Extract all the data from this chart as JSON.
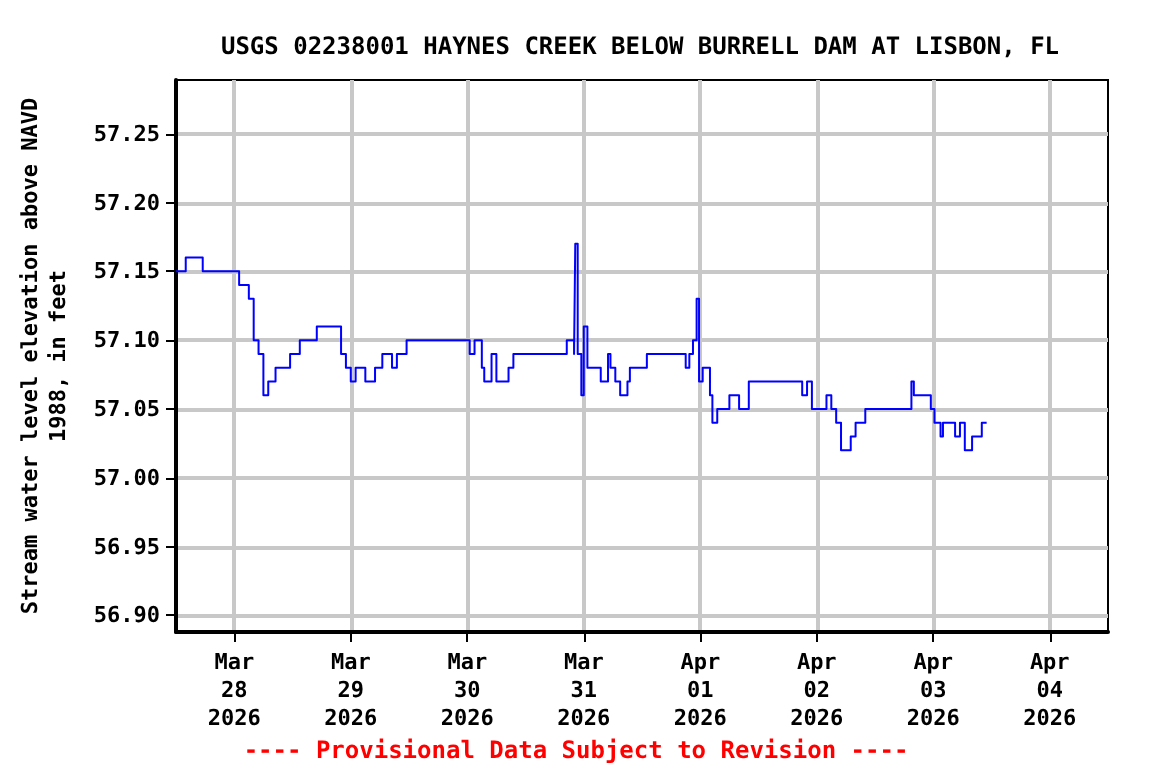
{
  "chart_data": {
    "type": "step",
    "title": "USGS 02238001 HAYNES CREEK BELOW BURRELL DAM AT LISBON, FL",
    "ylabel": "Stream water level elevation above NAVD 1988, in feet",
    "annotations": [
      "---- Provisional Data Subject to Revision ----"
    ],
    "x": [
      "2026-03-27T12:00",
      "2026-03-27T14:00",
      "2026-03-27T17:30",
      "2026-03-28T01:00",
      "2026-03-28T03:00",
      "2026-03-28T04:00",
      "2026-03-28T05:00",
      "2026-03-28T06:00",
      "2026-03-28T07:00",
      "2026-03-28T08:30",
      "2026-03-28T11:30",
      "2026-03-28T13:30",
      "2026-03-28T17:00",
      "2026-03-28T22:00",
      "2026-03-28T23:00",
      "2026-03-29T00:00",
      "2026-03-29T01:00",
      "2026-03-29T03:00",
      "2026-03-29T05:00",
      "2026-03-29T06:30",
      "2026-03-29T08:30",
      "2026-03-29T09:30",
      "2026-03-29T11:30",
      "2026-03-30T00:30",
      "2026-03-30T01:30",
      "2026-03-30T03:00",
      "2026-03-30T03:30",
      "2026-03-30T05:00",
      "2026-03-30T06:00",
      "2026-03-30T08:30",
      "2026-03-30T09:30",
      "2026-03-30T20:30",
      "2026-03-30T22:00",
      "2026-03-30T22:15",
      "2026-03-30T22:45",
      "2026-03-30T23:30",
      "2026-03-31T00:00",
      "2026-03-31T00:45",
      "2026-03-31T03:30",
      "2026-03-31T05:00",
      "2026-03-31T05:30",
      "2026-03-31T06:30",
      "2026-03-31T07:30",
      "2026-03-31T09:00",
      "2026-03-31T09:30",
      "2026-03-31T13:00",
      "2026-03-31T21:00",
      "2026-03-31T21:45",
      "2026-03-31T22:30",
      "2026-03-31T23:15",
      "2026-03-31T23:45",
      "2026-04-01T00:30",
      "2026-04-01T02:00",
      "2026-04-01T02:30",
      "2026-04-01T03:30",
      "2026-04-01T06:00",
      "2026-04-01T08:00",
      "2026-04-01T10:00",
      "2026-04-01T21:00",
      "2026-04-01T22:00",
      "2026-04-01T23:00",
      "2026-04-02T02:00",
      "2026-04-02T03:00",
      "2026-04-02T04:00",
      "2026-04-02T05:00",
      "2026-04-02T07:00",
      "2026-04-02T08:00",
      "2026-04-02T10:00",
      "2026-04-02T19:30",
      "2026-04-02T20:00",
      "2026-04-02T23:30",
      "2026-04-03T00:15",
      "2026-04-03T01:30",
      "2026-04-03T02:00",
      "2026-04-03T04:30",
      "2026-04-03T05:30",
      "2026-04-03T06:30",
      "2026-04-03T08:00",
      "2026-04-03T10:00",
      "2026-04-03T11:00"
    ],
    "series": [
      {
        "color": "#0000ff",
        "values": [
          57.15,
          57.16,
          57.15,
          57.14,
          57.13,
          57.1,
          57.09,
          57.06,
          57.07,
          57.08,
          57.09,
          57.1,
          57.11,
          57.09,
          57.08,
          57.07,
          57.08,
          57.07,
          57.08,
          57.09,
          57.08,
          57.09,
          57.1,
          57.09,
          57.1,
          57.08,
          57.07,
          57.09,
          57.07,
          57.08,
          57.09,
          57.1,
          57.09,
          57.17,
          57.09,
          57.06,
          57.11,
          57.08,
          57.07,
          57.09,
          57.08,
          57.07,
          57.06,
          57.07,
          57.08,
          57.09,
          57.08,
          57.09,
          57.1,
          57.13,
          57.07,
          57.08,
          57.06,
          57.04,
          57.05,
          57.06,
          57.05,
          57.07,
          57.06,
          57.07,
          57.05,
          57.06,
          57.05,
          57.04,
          57.02,
          57.03,
          57.04,
          57.05,
          57.07,
          57.06,
          57.05,
          57.04,
          57.03,
          57.04,
          57.03,
          57.04,
          57.02,
          57.03,
          57.04,
          57.04
        ]
      }
    ],
    "xlim": [
      "2026-03-27T12:00",
      "2026-04-04T12:00"
    ],
    "xticks": [
      {
        "value": "2026-03-28T00:00",
        "label": "Mar\n28\n2026"
      },
      {
        "value": "2026-03-29T00:00",
        "label": "Mar\n29\n2026"
      },
      {
        "value": "2026-03-30T00:00",
        "label": "Mar\n30\n2026"
      },
      {
        "value": "2026-03-31T00:00",
        "label": "Mar\n31\n2026"
      },
      {
        "value": "2026-04-01T00:00",
        "label": "Apr\n01\n2026"
      },
      {
        "value": "2026-04-02T00:00",
        "label": "Apr\n02\n2026"
      },
      {
        "value": "2026-04-03T00:00",
        "label": "Apr\n03\n2026"
      },
      {
        "value": "2026-04-04T00:00",
        "label": "Apr\n04\n2026"
      }
    ],
    "ylim": [
      56.888,
      57.289
    ],
    "yticks": [
      {
        "value": 56.9,
        "label": "56.90"
      },
      {
        "value": 56.95,
        "label": "56.95"
      },
      {
        "value": 57.0,
        "label": "57.00"
      },
      {
        "value": 57.05,
        "label": "57.05"
      },
      {
        "value": 57.1,
        "label": "57.10"
      },
      {
        "value": 57.15,
        "label": "57.15"
      },
      {
        "value": 57.2,
        "label": "57.20"
      },
      {
        "value": 57.25,
        "label": "57.25"
      }
    ],
    "grid": true,
    "line_style": "solid",
    "marker": "none"
  }
}
